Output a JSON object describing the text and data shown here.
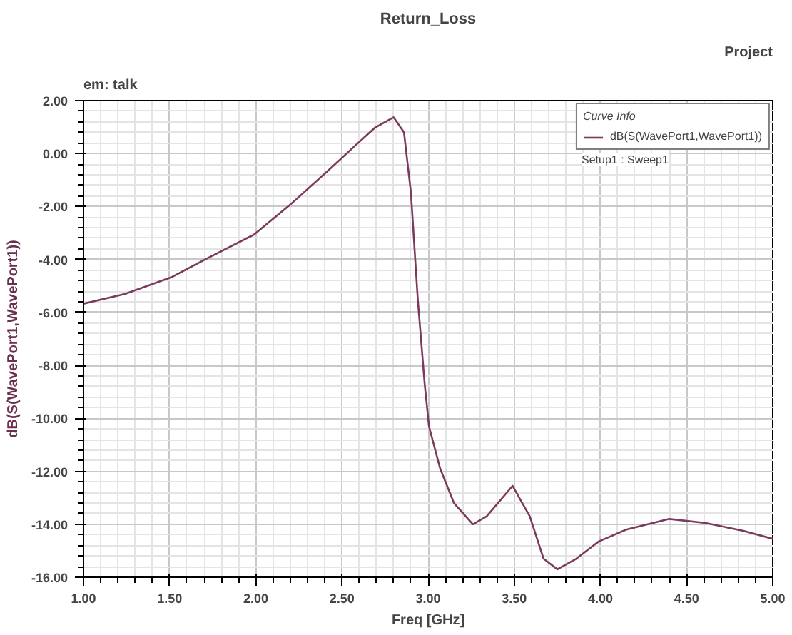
{
  "chart_data": {
    "type": "line",
    "title": "Return_Loss",
    "xlabel": "Freq [GHz]",
    "ylabel": "dB(S(WavePort1,WavePort1))",
    "legend_title": "Curve Info",
    "annotations": [
      "em: talk",
      "Project",
      "Setup1 : Sweep1"
    ],
    "x": [
      1.0,
      1.24,
      1.51,
      1.72,
      1.99,
      2.2,
      2.42,
      2.58,
      2.69,
      2.8,
      2.86,
      2.9,
      2.94,
      2.98,
      3.005,
      3.07,
      3.15,
      3.26,
      3.34,
      3.49,
      3.59,
      3.67,
      3.75,
      3.86,
      3.99,
      4.15,
      4.4,
      4.61,
      4.83,
      5.0
    ],
    "series": [
      {
        "name": "dB(S(WavePort1,WavePort1))",
        "color": "#7b3a5c",
        "values": [
          -5.67,
          -5.3,
          -4.67,
          -3.95,
          -3.06,
          -1.93,
          -0.64,
          0.32,
          0.97,
          1.37,
          0.8,
          -1.45,
          -5.5,
          -8.7,
          -10.3,
          -11.9,
          -13.2,
          -14.0,
          -13.7,
          -12.55,
          -13.7,
          -15.3,
          -15.7,
          -15.3,
          -14.65,
          -14.2,
          -13.8,
          -13.95,
          -14.25,
          -14.55
        ]
      }
    ],
    "xlim": [
      1.0,
      5.0
    ],
    "ylim": [
      -16.0,
      2.0
    ],
    "xticks": [
      {
        "value": 1.0,
        "label": "1.00"
      },
      {
        "value": 1.5,
        "label": "1.50"
      },
      {
        "value": 2.0,
        "label": "2.00"
      },
      {
        "value": 2.5,
        "label": "2.50"
      },
      {
        "value": 3.0,
        "label": "3.00"
      },
      {
        "value": 3.5,
        "label": "3.50"
      },
      {
        "value": 4.0,
        "label": "4.00"
      },
      {
        "value": 4.5,
        "label": "4.50"
      },
      {
        "value": 5.0,
        "label": "5.00"
      }
    ],
    "yticks": [
      {
        "value": 2.0,
        "label": "2.00"
      },
      {
        "value": 0.0,
        "label": "0.00"
      },
      {
        "value": -2.0,
        "label": "-2.00"
      },
      {
        "value": -4.0,
        "label": "-4.00"
      },
      {
        "value": -6.0,
        "label": "-6.00"
      },
      {
        "value": -8.0,
        "label": "-8.00"
      },
      {
        "value": -10.0,
        "label": "-10.00"
      },
      {
        "value": -12.0,
        "label": "-12.00"
      },
      {
        "value": -14.0,
        "label": "-14.00"
      },
      {
        "value": -16.0,
        "label": "-16.00"
      }
    ],
    "grid": true,
    "legend": "top right",
    "marker": "none",
    "line_style": "solid"
  }
}
